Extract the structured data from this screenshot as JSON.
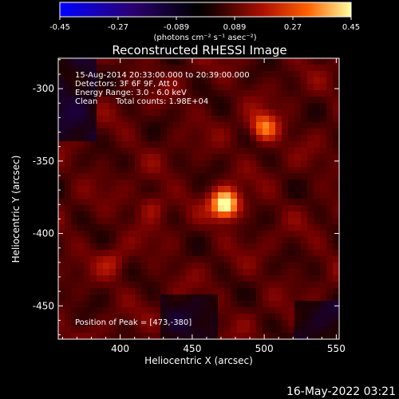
{
  "chart_data": {
    "type": "heatmap",
    "title": "Reconstructed RHESSI Image",
    "xlabel": "Heliocentric X (arcsec)",
    "ylabel": "Heliocentric Y (arcsec)",
    "xlim": [
      357,
      552
    ],
    "ylim": [
      -473,
      -279
    ],
    "x_ticks": [
      400,
      450,
      500,
      550
    ],
    "y_ticks": [
      -300,
      -350,
      -400,
      -450
    ],
    "colorbar": {
      "ticks": [
        "-0.45",
        "-0.27",
        "-0.089",
        "0.089",
        "0.27",
        "0.45"
      ],
      "range": [
        -0.45,
        0.45
      ],
      "unit_label": "(photons cm⁻² s⁻¹ asec⁻²)"
    },
    "annotations": {
      "time_range": "15-Aug-2014 20:33:00.000 to 20:39:00.000",
      "detectors": "Detectors: 3F 6F 9F, Att 0",
      "energy": "Energy Range: 3.0 - 6.0 keV",
      "method": "Clean",
      "total_counts": "Total counts: 1.98E+04",
      "peak": "Position of Peak = [473,-380]"
    },
    "peak_position": [
      473,
      -380
    ],
    "sources": [
      {
        "x": 473,
        "y": -380,
        "amp": 0.45
      },
      {
        "x": 500,
        "y": -327,
        "amp": 0.27
      },
      {
        "x": 422,
        "y": -381,
        "amp": 0.12
      },
      {
        "x": 395,
        "y": -420,
        "amp": 0.1
      }
    ]
  },
  "footer": {
    "date": "16-May-2022 03:21"
  }
}
